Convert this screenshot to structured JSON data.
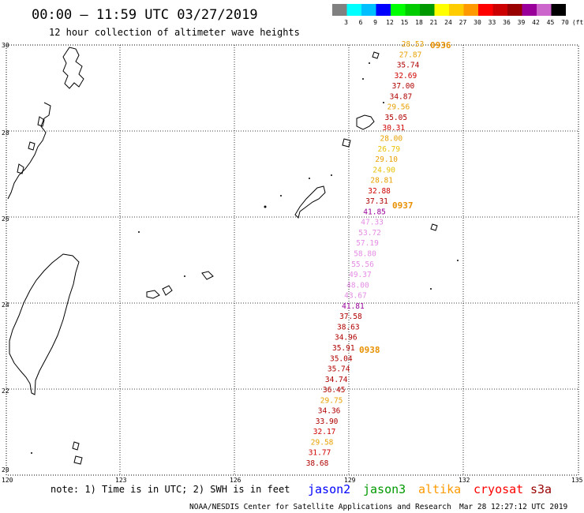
{
  "header": {
    "title": "00:00 – 11:59 UTC 03/27/2019",
    "subtitle": "12 hour collection of altimeter wave heights"
  },
  "color_scale": {
    "labels": [
      "3",
      "6",
      "9",
      "12",
      "15",
      "18",
      "21",
      "24",
      "27",
      "30",
      "33",
      "36",
      "39",
      "42",
      "45",
      "70",
      "(ft)"
    ],
    "colors": [
      "#808080",
      "#00ffff",
      "#00bfff",
      "#0000ff",
      "#00ff00",
      "#00cc00",
      "#009900",
      "#ffff00",
      "#ffcc00",
      "#ff9900",
      "#ff0000",
      "#cc0000",
      "#990000",
      "#990099",
      "#cc66cc",
      "#000000"
    ]
  },
  "axes": {
    "lat_labels": [
      "30",
      "28",
      "26",
      "24",
      "22",
      "20"
    ],
    "lon_labels": [
      "120",
      "123",
      "126",
      "129",
      "132",
      "135"
    ]
  },
  "pass": {
    "times": [
      "0936",
      "0937",
      "0938"
    ],
    "swh": [
      {
        "v": "28.53",
        "c": "#e8a000"
      },
      {
        "v": "27.87",
        "c": "#e8a000"
      },
      {
        "v": "35.74",
        "c": "#b00000"
      },
      {
        "v": "32.69",
        "c": "#d00000"
      },
      {
        "v": "37.00",
        "c": "#b00000"
      },
      {
        "v": "34.87",
        "c": "#b00000"
      },
      {
        "v": "29.56",
        "c": "#e8a000"
      },
      {
        "v": "35.05",
        "c": "#b00000"
      },
      {
        "v": "30.31",
        "c": "#d00000"
      },
      {
        "v": "28.00",
        "c": "#e8a000"
      },
      {
        "v": "26.79",
        "c": "#e8c000"
      },
      {
        "v": "29.10",
        "c": "#e8a000"
      },
      {
        "v": "24.90",
        "c": "#e8c000"
      },
      {
        "v": "28.81",
        "c": "#e8a000"
      },
      {
        "v": "32.88",
        "c": "#d00000"
      },
      {
        "v": "37.31",
        "c": "#b00000"
      },
      {
        "v": "41.85",
        "c": "#990099"
      },
      {
        "v": "47.33",
        "c": "#e58de5"
      },
      {
        "v": "53.72",
        "c": "#e58de5"
      },
      {
        "v": "57.19",
        "c": "#e58de5"
      },
      {
        "v": "58.80",
        "c": "#e58de5"
      },
      {
        "v": "55.56",
        "c": "#e58de5"
      },
      {
        "v": "49.37",
        "c": "#e58de5"
      },
      {
        "v": "48.00",
        "c": "#e58de5"
      },
      {
        "v": "43.67",
        "c": "#e58de5"
      },
      {
        "v": "41.81",
        "c": "#990099"
      },
      {
        "v": "37.58",
        "c": "#b00000"
      },
      {
        "v": "38.63",
        "c": "#b00000"
      },
      {
        "v": "34.96",
        "c": "#b00000"
      },
      {
        "v": "35.91",
        "c": "#b00000"
      },
      {
        "v": "35.04",
        "c": "#b00000"
      },
      {
        "v": "35.74",
        "c": "#b00000"
      },
      {
        "v": "34.74",
        "c": "#b00000"
      },
      {
        "v": "36.45",
        "c": "#b00000"
      },
      {
        "v": "29.75",
        "c": "#e8a000"
      },
      {
        "v": "34.36",
        "c": "#b00000"
      },
      {
        "v": "33.90",
        "c": "#b00000"
      },
      {
        "v": "32.17",
        "c": "#d00000"
      },
      {
        "v": "29.58",
        "c": "#e8a000"
      },
      {
        "v": "31.77",
        "c": "#d00000"
      },
      {
        "v": "38.68",
        "c": "#b00000"
      }
    ]
  },
  "footer": {
    "note": "note: 1) Time is in UTC; 2) SWH is in feet",
    "satellites": [
      {
        "name": "jason2",
        "color": "#0000ff"
      },
      {
        "name": "jason3",
        "color": "#009900"
      },
      {
        "name": "altika",
        "color": "#ff9900"
      },
      {
        "name": "cryosat",
        "color": "#ff0000"
      },
      {
        "name": "s3a",
        "color": "#990000"
      }
    ],
    "credit": "NOAA/NESDIS Center for Satellite Applications and Research",
    "generated": "Mar 28 12:27:12 UTC 2019"
  },
  "map_data": {
    "lat_range": [
      20,
      30
    ],
    "lon_range": [
      120,
      135
    ],
    "place_labels": []
  }
}
